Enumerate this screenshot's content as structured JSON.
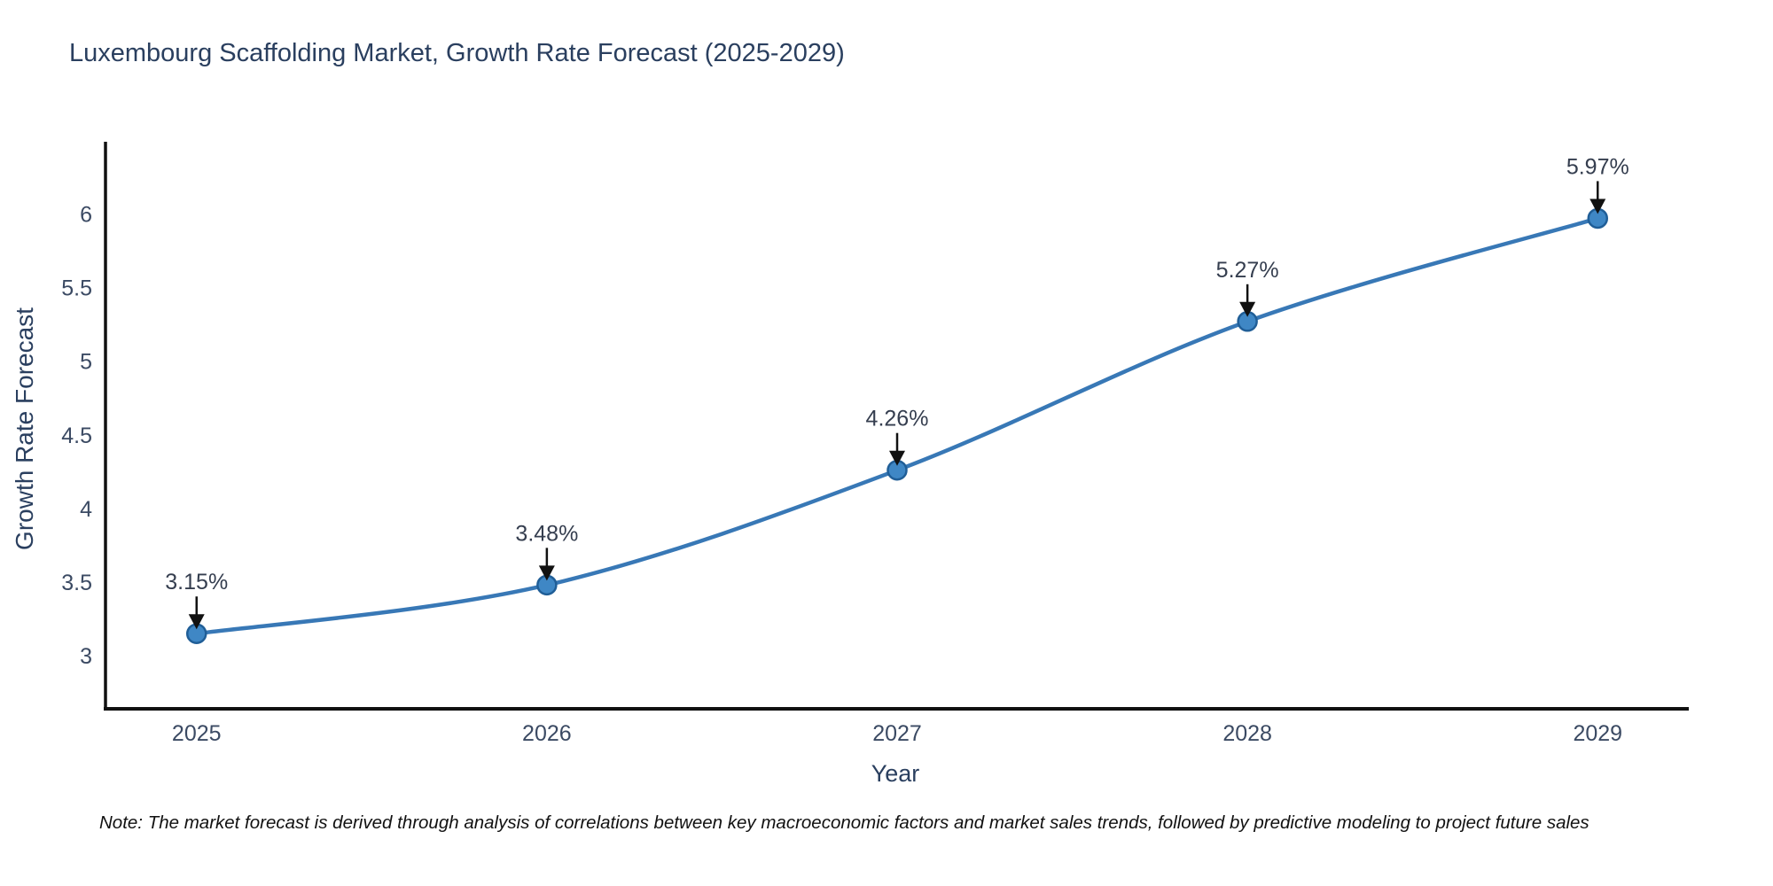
{
  "note": "Note: The market forecast is derived through analysis of correlations between key macroeconomic factors and market sales trends, followed by predictive modeling to project future sales",
  "chart_data": {
    "type": "line",
    "title": "Luxembourg Scaffolding Market, Growth Rate Forecast (2025-2029)",
    "xlabel": "Year",
    "ylabel": "Growth Rate Forecast",
    "categories": [
      "2025",
      "2026",
      "2027",
      "2028",
      "2029"
    ],
    "values": [
      3.15,
      3.48,
      4.26,
      5.27,
      5.97
    ],
    "point_labels": [
      "3.15%",
      "3.48%",
      "4.26%",
      "5.27%",
      "5.97%"
    ],
    "y_ticks": [
      3,
      3.5,
      4,
      4.5,
      5,
      5.5,
      6
    ],
    "y_tick_labels": [
      "3",
      "3.5",
      "4",
      "4.5",
      "5",
      "5.5",
      "6"
    ],
    "ylim": [
      2.64,
      6.49
    ],
    "xlim": [
      -0.26,
      4.26
    ],
    "grid": false,
    "legend_position": "none",
    "curve": "spline",
    "line_color": "#3878b6",
    "marker_color": "#3f87c5",
    "marker_edge_color": "#205e97",
    "axis_line_color": "#111111",
    "tick_text_color": "#3b4a63",
    "annotation_text_color": "#353e4f",
    "annotation_arrow_color": "#111111",
    "title_text_color": "#2a3f5f"
  }
}
